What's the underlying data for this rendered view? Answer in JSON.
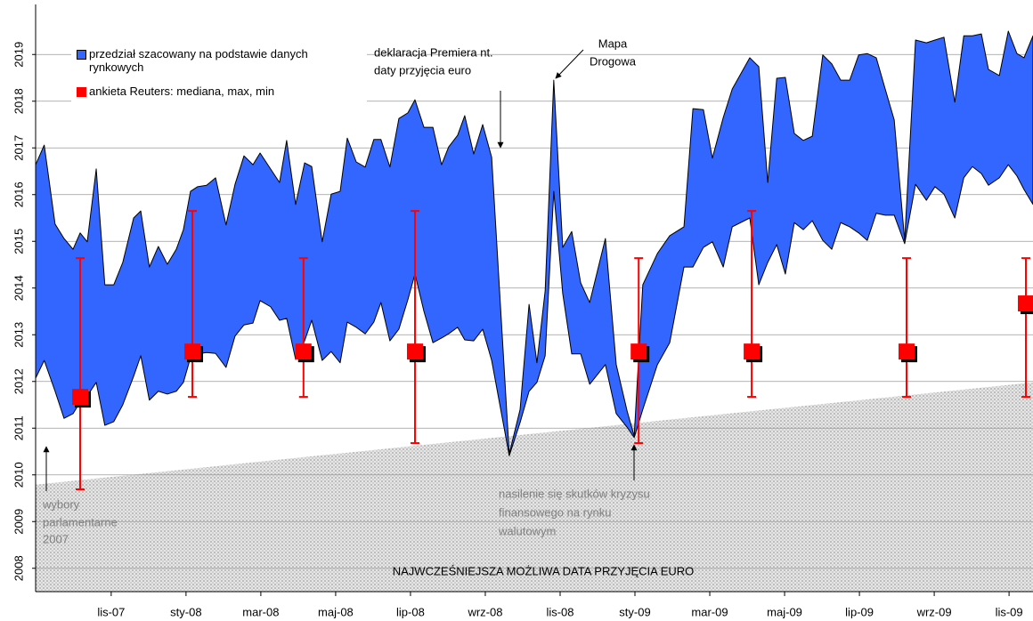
{
  "chart_data": {
    "type": "range-area",
    "legend": "upper left",
    "grid": true,
    "xlim": [
      8.98,
      35.64
    ],
    "ylim": [
      2007.5,
      2019.5
    ],
    "xticks": [
      {
        "value": 11,
        "label": "lis-07"
      },
      {
        "value": 13,
        "label": "sty-08"
      },
      {
        "value": 15,
        "label": "mar-08"
      },
      {
        "value": 17,
        "label": "maj-08"
      },
      {
        "value": 19,
        "label": "lip-08"
      },
      {
        "value": 21,
        "label": "wrz-08"
      },
      {
        "value": 23,
        "label": "lis-08"
      },
      {
        "value": 25,
        "label": "sty-09"
      },
      {
        "value": 27,
        "label": "mar-09"
      },
      {
        "value": 29,
        "label": "maj-09"
      },
      {
        "value": 31,
        "label": "lip-09"
      },
      {
        "value": 33,
        "label": "wrz-09"
      },
      {
        "value": 35,
        "label": "lis-09"
      }
    ],
    "yticks": [
      2008,
      2009,
      2010,
      2011,
      2012,
      2013,
      2014,
      2015,
      2016,
      2017,
      2018,
      2019
    ],
    "floor": {
      "label": "NAJWCZEŚNIEJSZA MOŻLIWA DATA PRZYJĘCIA EURO",
      "color": "#c8c8c8",
      "x": [
        8.98,
        35.64
      ],
      "values": [
        2009.79,
        2011.98
      ]
    },
    "series": [
      {
        "name": "przedział szacowany na podstawie danych rynkowych",
        "color": "#3366ff",
        "x": [
          8.98,
          9.21,
          9.5,
          9.74,
          9.98,
          10.17,
          10.36,
          10.6,
          10.83,
          11.07,
          11.31,
          11.6,
          11.79,
          12.02,
          12.26,
          12.5,
          12.74,
          12.93,
          13.12,
          13.31,
          13.55,
          13.79,
          14.07,
          14.31,
          14.55,
          14.79,
          14.98,
          15.26,
          15.5,
          15.69,
          15.93,
          16.17,
          16.36,
          16.64,
          16.88,
          17.12,
          17.31,
          17.55,
          17.79,
          18.02,
          18.21,
          18.45,
          18.69,
          18.93,
          19.12,
          19.36,
          19.6,
          19.83,
          20.02,
          20.26,
          20.45,
          20.69,
          20.93,
          21.17,
          21.64,
          21.93,
          22.17,
          22.38,
          22.6,
          22.83,
          23.07,
          23.31,
          23.55,
          23.79,
          24.21,
          24.5,
          24.79,
          24.98,
          25.21,
          25.6,
          25.93,
          26.31,
          26.55,
          26.83,
          27.07,
          27.36,
          27.6,
          28.07,
          28.31,
          28.55,
          28.79,
          29.02,
          29.26,
          29.5,
          29.74,
          30.02,
          30.26,
          30.5,
          30.74,
          30.98,
          31.21,
          31.45,
          31.69,
          31.93,
          32.21,
          32.5,
          32.79,
          33.02,
          33.26,
          33.55,
          33.79,
          34.02,
          34.26,
          34.45,
          34.74,
          34.98,
          35.21,
          35.4,
          35.64
        ],
        "high": [
          2016.64,
          2017.06,
          2015.37,
          2015.06,
          2014.83,
          2015.18,
          2014.99,
          2016.55,
          2014.07,
          2014.07,
          2014.55,
          2015.5,
          2015.65,
          2014.45,
          2014.89,
          2014.51,
          2014.83,
          2015.25,
          2016.07,
          2016.17,
          2016.2,
          2016.36,
          2015.35,
          2016.22,
          2016.83,
          2016.64,
          2016.89,
          2016.55,
          2016.26,
          2017.16,
          2015.79,
          2016.68,
          2016.6,
          2014.99,
          2016.01,
          2016.07,
          2017.21,
          2016.7,
          2016.59,
          2017.18,
          2017.18,
          2016.59,
          2017.63,
          2017.75,
          2018.03,
          2017.44,
          2017.44,
          2016.64,
          2017.02,
          2017.27,
          2017.69,
          2016.87,
          2017.5,
          2016.8,
          2010.45,
          2011.4,
          2013.65,
          2012.4,
          2013.94,
          2018.45,
          2014.87,
          2015.21,
          2014.11,
          2013.69,
          2015.06,
          2012.36,
          2011.37,
          2010.83,
          2014.07,
          2014.74,
          2015.12,
          2015.31,
          2017.84,
          2017.82,
          2016.78,
          2017.65,
          2018.26,
          2018.93,
          2018.74,
          2016.26,
          2018.49,
          2018.51,
          2017.31,
          2017.16,
          2017.25,
          2018.99,
          2018.8,
          2018.45,
          2018.45,
          2018.99,
          2019.02,
          2018.93,
          2018.26,
          2017.6,
          2015.02,
          2019.31,
          2019.25,
          2019.31,
          2019.37,
          2017.98,
          2019.4,
          2019.4,
          2019.44,
          2018.68,
          2018.55,
          2019.5,
          2019.02,
          2018.93,
          2019.4
        ],
        "low": [
          2012.07,
          2012.45,
          2011.79,
          2011.21,
          2011.31,
          2011.56,
          2011.69,
          2011.98,
          2011.06,
          2011.14,
          2011.5,
          2012.11,
          2012.55,
          2011.6,
          2011.79,
          2011.73,
          2011.79,
          2011.98,
          2012.51,
          2012.59,
          2012.62,
          2012.6,
          2012.3,
          2012.97,
          2013.21,
          2013.25,
          2013.73,
          2013.6,
          2013.31,
          2013.35,
          2012.47,
          2012.87,
          2013.31,
          2012.45,
          2012.64,
          2012.4,
          2013.27,
          2013.16,
          2013.02,
          2013.27,
          2013.69,
          2012.87,
          2013.12,
          2013.75,
          2014.3,
          2013.5,
          2012.83,
          2012.93,
          2013.02,
          2013.16,
          2012.89,
          2012.87,
          2013.12,
          2012.45,
          2010.41,
          2011.12,
          2011.79,
          2011.98,
          2012.55,
          2016.07,
          2013.88,
          2012.59,
          2012.59,
          2011.94,
          2012.36,
          2011.31,
          2011.02,
          2010.8,
          2011.4,
          2012.36,
          2012.83,
          2014.45,
          2014.45,
          2014.87,
          2014.99,
          2014.45,
          2015.31,
          2015.5,
          2014.07,
          2014.55,
          2014.93,
          2014.3,
          2015.4,
          2015.25,
          2015.44,
          2015.02,
          2014.83,
          2015.4,
          2015.31,
          2015.18,
          2015.02,
          2015.6,
          2015.56,
          2015.56,
          2014.95,
          2016.22,
          2015.88,
          2016.17,
          2016.01,
          2015.5,
          2016.36,
          2016.6,
          2016.45,
          2016.2,
          2016.36,
          2016.64,
          2016.4,
          2016.11,
          2015.79
        ]
      },
      {
        "name": "ankieta Reuters: mediana, max, min",
        "color": "#ff0000",
        "x": [
          10.17,
          13.17,
          16.14,
          19.12,
          25.1,
          28.12,
          32.26,
          35.45
        ],
        "median": [
          2011.67,
          2012.64,
          2012.64,
          2012.64,
          2012.64,
          2012.64,
          2012.64,
          2013.67
        ],
        "max": [
          2014.64,
          2015.65,
          2014.64,
          2015.65,
          2014.64,
          2015.65,
          2014.64,
          2014.64
        ],
        "min": [
          2009.69,
          2011.67,
          2011.67,
          2010.68,
          2010.68,
          2011.67,
          2011.67,
          2011.67
        ]
      }
    ],
    "annotations": [
      {
        "lines": [
          "wybory",
          "parlamentarne",
          "2007"
        ]
      },
      {
        "lines": [
          "deklaracja Premiera nt.",
          "daty przyjęcia euro"
        ]
      },
      {
        "lines": [
          "Mapa",
          "Drogowa"
        ]
      },
      {
        "lines": [
          "nasilenie się skutków kryzysu",
          "finansowego na rynku",
          "walutowym"
        ]
      }
    ]
  }
}
